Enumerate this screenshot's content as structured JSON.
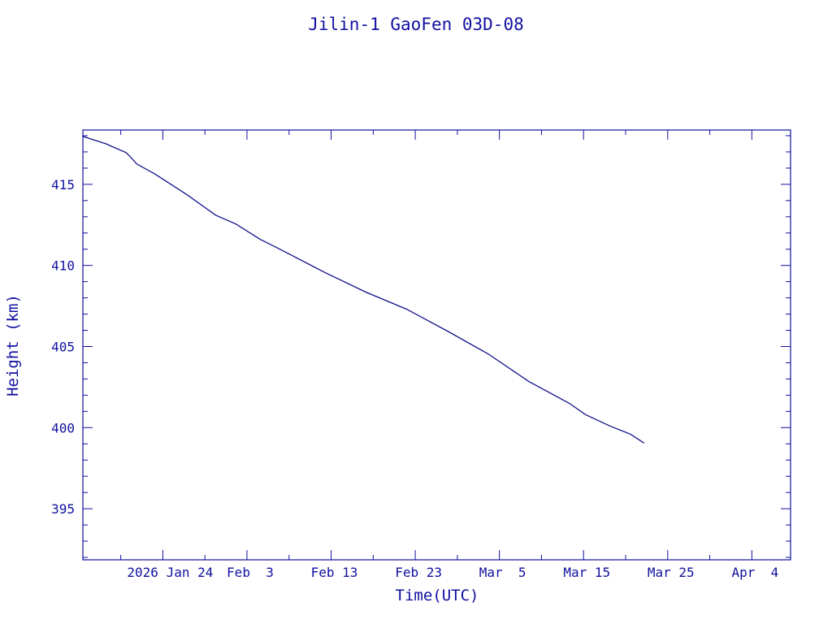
{
  "chart_data": {
    "type": "line",
    "title": "Jilin-1 GaoFen 03D-08",
    "xlabel": "Time(UTC)",
    "ylabel": "Height (km)",
    "x_units": "days since 2026 Jan 24 00:00 UTC",
    "xlim": [
      -9.5,
      74.6
    ],
    "ylim": [
      391.85,
      418.35
    ],
    "x_ticks": [
      {
        "value": 0,
        "label": "2026 Jan 24"
      },
      {
        "value": 10,
        "label": "Feb  3"
      },
      {
        "value": 20,
        "label": "Feb 13"
      },
      {
        "value": 30,
        "label": "Feb 23"
      },
      {
        "value": 40,
        "label": "Mar  5"
      },
      {
        "value": 50,
        "label": "Mar 15"
      },
      {
        "value": 60,
        "label": "Mar 25"
      },
      {
        "value": 70,
        "label": "Apr  4"
      }
    ],
    "y_ticks": [
      {
        "value": 395,
        "label": "395"
      },
      {
        "value": 400,
        "label": "400"
      },
      {
        "value": 405,
        "label": "405"
      },
      {
        "value": 410,
        "label": "410"
      },
      {
        "value": 415,
        "label": "415"
      }
    ],
    "grid": false,
    "series": [
      {
        "name": "Height",
        "color": "#10108a",
        "x": [
          -9.47,
          -6.76,
          -4.35,
          -3.86,
          -3.09,
          -0.97,
          2.9,
          6.28,
          8.7,
          11.59,
          13.53,
          19.32,
          24.15,
          28.99,
          33.82,
          38.65,
          43.48,
          48.31,
          50.24,
          53.14,
          55.56,
          57.2
        ],
        "y": [
          417.95,
          417.5,
          416.95,
          416.7,
          416.25,
          415.65,
          414.35,
          413.1,
          412.55,
          411.6,
          411.1,
          409.55,
          408.35,
          407.3,
          405.95,
          404.55,
          402.85,
          401.5,
          400.8,
          400.1,
          399.6,
          399.05
        ]
      }
    ]
  }
}
